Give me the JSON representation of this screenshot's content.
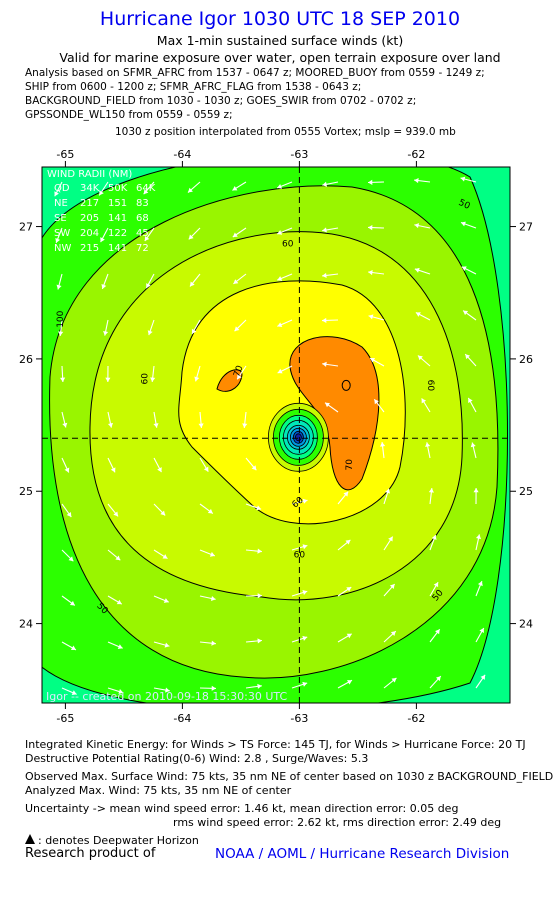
{
  "header": {
    "title": "Hurricane Igor 1030 UTC 18 SEP 2010",
    "subtitle": "Max 1-min sustained surface winds (kt)",
    "validity": "Valid for marine exposure over water, open terrain exposure over land",
    "analysis_lines": [
      "Analysis based on SFMR_AFRC from 1537 - 0647 z; MOORED_BUOY from 0559 - 1249 z;",
      "SHIP from 0600 - 1200 z; SFMR_AFRC_FLAG from 1538 - 0643 z;",
      "BACKGROUND_FIELD from 1030 - 1030 z; GOES_SWIR from 0702 - 0702 z;",
      "GPSSONDE_WL150 from 0559 - 0559 z;"
    ],
    "position_note": "1030 z position interpolated from 0555 Vortex; mslp = 939.0 mb"
  },
  "chart_data": {
    "type": "heatmap",
    "x_ticks": [
      "-65",
      "-64",
      "-63",
      "-62"
    ],
    "y_ticks": [
      "27",
      "26",
      "25",
      "24"
    ],
    "xlim": [
      -65.2,
      -61.2
    ],
    "ylim": [
      23.4,
      27.45
    ],
    "center": {
      "lon": -63.0,
      "lat": 25.4
    },
    "contour_levels": [
      30,
      40,
      50,
      60,
      64,
      70
    ],
    "contour_labels": [
      {
        "text": "50",
        "lon": -61.6,
        "lat": 27.15,
        "rot": 25
      },
      {
        "text": "60",
        "lon": -63.1,
        "lat": 26.85,
        "rot": 0
      },
      {
        "text": "60",
        "lon": -64.3,
        "lat": 25.85,
        "rot": -90
      },
      {
        "text": "60",
        "lon": -61.9,
        "lat": 25.8,
        "rot": 90
      },
      {
        "text": "70",
        "lon": -63.5,
        "lat": 25.9,
        "rot": -70
      },
      {
        "text": "70",
        "lon": -62.55,
        "lat": 25.2,
        "rot": -90
      },
      {
        "text": "60",
        "lon": -63.0,
        "lat": 24.9,
        "rot": -40
      },
      {
        "text": "60",
        "lon": -63.0,
        "lat": 24.5,
        "rot": 0
      },
      {
        "text": "50",
        "lon": -64.7,
        "lat": 24.1,
        "rot": 45
      },
      {
        "text": "50",
        "lon": -61.8,
        "lat": 24.2,
        "rot": -50
      },
      {
        "text": "100",
        "lon": -65.02,
        "lat": 26.3,
        "rot": -90
      }
    ],
    "max_wind_marker": {
      "lon": -62.6,
      "lat": 25.8
    },
    "wind_radii": {
      "title": "WIND RADII (NM)",
      "header": [
        "QD",
        "34K",
        "50K",
        "64K"
      ],
      "rows": [
        [
          "NE",
          "217",
          "151",
          "83"
        ],
        [
          "SE",
          "205",
          "141",
          "68"
        ],
        [
          "SW",
          "204",
          "122",
          "45"
        ],
        [
          "NW",
          "215",
          "141",
          "72"
        ]
      ]
    },
    "credit": "Igor -- created on 2010-09-18 15:30:30 UTC"
  },
  "colors": {
    "lt30": "#00e8b8",
    "c30": "#00ff84",
    "c40": "#2cff00",
    "c50": "#99f500",
    "c60": "#c8fa00",
    "c64": "#ffff00",
    "c70": "#ff8a00",
    "link": "#0000ee"
  },
  "footer": {
    "ike": "Integrated Kinetic Energy:  for Winds > TS Force: 145 TJ,  for Winds > Hurricane Force: 20 TJ",
    "dpr": "Destructive Potential Rating(0-6)   Wind: 2.8 , Surge/Waves: 5.3",
    "obs_max": "Observed Max. Surface Wind: 75 kts, 35 nm NE of center based on 1030 z BACKGROUND_FIELD",
    "ana_max": "Analyzed Max. Wind: 75 kts, 35 nm NE of center",
    "unc1": "Uncertainty -> mean wind speed error: 1.46 kt,   mean direction error: 0.05 deg",
    "unc2": "rms wind speed error: 2.62 kt,   rms direction error: 2.49 deg",
    "dwh": ": denotes Deepwater Horizon",
    "research": "Research product of",
    "noaa": "NOAA / AOML / Hurricane Research Division"
  }
}
